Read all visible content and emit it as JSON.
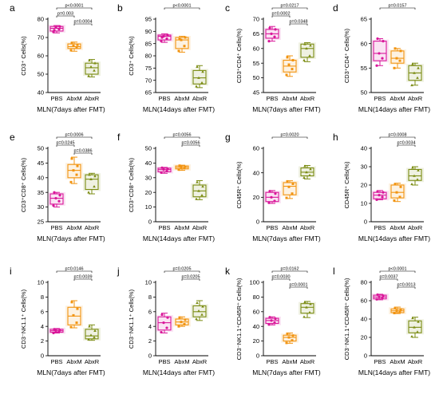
{
  "colors": {
    "PBS": "#d9179a",
    "AbxM": "#f29411",
    "AbxR": "#7b8c13"
  },
  "chart_data": [
    {
      "letter": "a",
      "type": "box",
      "ylabel": "CD3⁺ Cells(%)",
      "xlabel": "MLN(7days after FMT)",
      "categories": [
        "PBS",
        "AbxM",
        "AbxR"
      ],
      "ylim": [
        40,
        80
      ],
      "yticks": [
        40,
        50,
        60,
        70,
        80
      ],
      "series": [
        {
          "group": "PBS",
          "min": 72.5,
          "q1": 73.5,
          "median": 75,
          "q3": 76,
          "max": 76.5,
          "points": [
            73,
            74.5,
            75.5,
            76,
            74
          ]
        },
        {
          "group": "AbxM",
          "min": 62.5,
          "q1": 64,
          "median": 65,
          "q3": 66.5,
          "max": 67.5,
          "points": [
            63,
            64.5,
            65.5,
            66,
            67
          ]
        },
        {
          "group": "AbxR",
          "min": 48.5,
          "q1": 50,
          "median": 53.5,
          "q3": 56,
          "max": 58,
          "points": [
            49,
            52,
            54,
            56,
            57.5
          ]
        }
      ],
      "comparisons": [
        {
          "from": 0,
          "to": 2,
          "text": "p<0.0001"
        },
        {
          "from": 0,
          "to": 1,
          "text": "p=0.003"
        },
        {
          "from": 1,
          "to": 2,
          "text": "p=0.0004"
        }
      ]
    },
    {
      "letter": "b",
      "type": "box",
      "ylabel": "CD3⁺ Cells(%)",
      "xlabel": "MLN(14days after FMT)",
      "categories": [
        "PBS",
        "AbxM",
        "AbxR"
      ],
      "ylim": [
        65,
        95
      ],
      "yticks": [
        65,
        70,
        75,
        80,
        85,
        90,
        95
      ],
      "series": [
        {
          "group": "PBS",
          "min": 85.5,
          "q1": 86.5,
          "median": 88,
          "q3": 88.5,
          "max": 89,
          "points": [
            86,
            87,
            88,
            88.5,
            87.5
          ]
        },
        {
          "group": "AbxM",
          "min": 81.5,
          "q1": 83,
          "median": 86.5,
          "q3": 87.5,
          "max": 88,
          "points": [
            82,
            84,
            86.5,
            87.5,
            87
          ]
        },
        {
          "group": "AbxR",
          "min": 67,
          "q1": 68.5,
          "median": 71,
          "q3": 74,
          "max": 76,
          "points": [
            67.5,
            69,
            71,
            73.5,
            75.5
          ]
        }
      ],
      "comparisons": [
        {
          "from": 0,
          "to": 2,
          "text": "p<0.0001"
        }
      ]
    },
    {
      "letter": "c",
      "type": "box",
      "ylabel": "CD3⁺CD4⁺ Cells(%)",
      "xlabel": "MLN(7days after FMT)",
      "categories": [
        "PBS",
        "AbxM",
        "AbxR"
      ],
      "ylim": [
        45,
        70
      ],
      "yticks": [
        45,
        50,
        55,
        60,
        65,
        70
      ],
      "series": [
        {
          "group": "PBS",
          "min": 62.5,
          "q1": 63.5,
          "median": 65,
          "q3": 66.5,
          "max": 67.5,
          "points": [
            62.5,
            64,
            65,
            66.5,
            67
          ]
        },
        {
          "group": "AbxM",
          "min": 50.5,
          "q1": 52,
          "median": 54,
          "q3": 56,
          "max": 57.5,
          "points": [
            51,
            53,
            54.5,
            56,
            57
          ]
        },
        {
          "group": "AbxR",
          "min": 55.5,
          "q1": 57,
          "median": 60,
          "q3": 61.5,
          "max": 62,
          "points": [
            56,
            57.5,
            60,
            61,
            61.5
          ]
        }
      ],
      "comparisons": [
        {
          "from": 0,
          "to": 1,
          "text": "p=0.0002"
        },
        {
          "from": 0,
          "to": 2,
          "text": "p=0.0217"
        },
        {
          "from": 1,
          "to": 2,
          "text": "p=0.0348"
        }
      ]
    },
    {
      "letter": "d",
      "type": "box",
      "ylabel": "CD3⁺CD4⁺ Cells(%)",
      "xlabel": "MLN(14days after FMT)",
      "categories": [
        "PBS",
        "AbxM",
        "AbxR"
      ],
      "ylim": [
        50,
        65
      ],
      "yticks": [
        50,
        55,
        60,
        65
      ],
      "series": [
        {
          "group": "PBS",
          "min": 55.5,
          "q1": 56.5,
          "median": 58,
          "q3": 60.5,
          "max": 61,
          "points": [
            55.5,
            57,
            58,
            60.5,
            61
          ]
        },
        {
          "group": "AbxM",
          "min": 55,
          "q1": 56,
          "median": 57,
          "q3": 58.5,
          "max": 59,
          "points": [
            55,
            56.5,
            57,
            58.5,
            59
          ]
        },
        {
          "group": "AbxR",
          "min": 51.5,
          "q1": 52.5,
          "median": 54,
          "q3": 55.5,
          "max": 56,
          "points": [
            51.5,
            53,
            54,
            55,
            55.8
          ]
        }
      ],
      "comparisons": [
        {
          "from": 0,
          "to": 2,
          "text": "p=0.0157"
        }
      ]
    },
    {
      "letter": "e",
      "type": "box",
      "ylabel": "CD3⁺CD8⁺ Cells(%)",
      "xlabel": "MLN(7days after FMT)",
      "categories": [
        "PBS",
        "AbxM",
        "AbxR"
      ],
      "ylim": [
        25,
        50
      ],
      "yticks": [
        25,
        30,
        35,
        40,
        45,
        50
      ],
      "series": [
        {
          "group": "PBS",
          "min": 30,
          "q1": 31,
          "median": 33,
          "q3": 34.5,
          "max": 35,
          "points": [
            30.5,
            32,
            33,
            34,
            35
          ]
        },
        {
          "group": "AbxM",
          "min": 38,
          "q1": 40,
          "median": 42.5,
          "q3": 44.5,
          "max": 47,
          "points": [
            38.5,
            41,
            42.5,
            44,
            46.5
          ]
        },
        {
          "group": "AbxR",
          "min": 34.5,
          "q1": 36,
          "median": 39.5,
          "q3": 41,
          "max": 41.5,
          "points": [
            35,
            37,
            39.5,
            40.5,
            41
          ]
        }
      ],
      "comparisons": [
        {
          "from": 0,
          "to": 2,
          "text": "p=0.0006"
        },
        {
          "from": 0,
          "to": 1,
          "text": "p=0.0245"
        },
        {
          "from": 1,
          "to": 2,
          "text": "p=0.0386"
        }
      ]
    },
    {
      "letter": "f",
      "type": "box",
      "ylabel": "CD3⁺CD8⁺ Cells(%)",
      "xlabel": "MLN(14days after FMT)",
      "categories": [
        "PBS",
        "AbxM",
        "AbxR"
      ],
      "ylim": [
        0,
        50
      ],
      "yticks": [
        0,
        10,
        20,
        30,
        40,
        50
      ],
      "series": [
        {
          "group": "PBS",
          "min": 33,
          "q1": 34,
          "median": 35.5,
          "q3": 36.5,
          "max": 37,
          "points": [
            33.5,
            34.5,
            35.5,
            36,
            36.8
          ]
        },
        {
          "group": "AbxM",
          "min": 35,
          "q1": 36,
          "median": 37,
          "q3": 38,
          "max": 38.5,
          "points": [
            35.5,
            36.5,
            37,
            37.5,
            38.2
          ]
        },
        {
          "group": "AbxR",
          "min": 15,
          "q1": 17,
          "median": 21,
          "q3": 25,
          "max": 28,
          "points": [
            15.5,
            18,
            21,
            24,
            27
          ]
        }
      ],
      "comparisons": [
        {
          "from": 0,
          "to": 2,
          "text": "p=0.0056"
        },
        {
          "from": 1,
          "to": 2,
          "text": "p=0.0056"
        }
      ]
    },
    {
      "letter": "g",
      "type": "box",
      "ylabel": "CD45R⁺ Cells(%)",
      "xlabel": "MLN(7days after FMT)",
      "categories": [
        "PBS",
        "AbxM",
        "AbxR"
      ],
      "ylim": [
        0,
        60
      ],
      "yticks": [
        0,
        20,
        40,
        60
      ],
      "series": [
        {
          "group": "PBS",
          "min": 15,
          "q1": 16.5,
          "median": 20,
          "q3": 24,
          "max": 25.5,
          "points": [
            15.5,
            17,
            20,
            23,
            25
          ]
        },
        {
          "group": "AbxM",
          "min": 19,
          "q1": 22,
          "median": 29,
          "q3": 32,
          "max": 33.5,
          "points": [
            19.5,
            23,
            28.5,
            31,
            33
          ]
        },
        {
          "group": "AbxR",
          "min": 35,
          "q1": 37.5,
          "median": 40.5,
          "q3": 44,
          "max": 46,
          "points": [
            36,
            38,
            40.5,
            43,
            45.5
          ]
        }
      ],
      "comparisons": [
        {
          "from": 0,
          "to": 2,
          "text": "p=0.0020"
        }
      ]
    },
    {
      "letter": "h",
      "type": "box",
      "ylabel": "CD45R⁺ Cells(%)",
      "xlabel": "MLN(14days after FMT)",
      "categories": [
        "PBS",
        "AbxM",
        "AbxR"
      ],
      "ylim": [
        0,
        40
      ],
      "yticks": [
        0,
        10,
        20,
        30,
        40
      ],
      "series": [
        {
          "group": "PBS",
          "min": 12,
          "q1": 12.5,
          "median": 14.5,
          "q3": 16,
          "max": 17,
          "points": [
            12,
            13.5,
            14.5,
            16,
            16.5
          ]
        },
        {
          "group": "AbxM",
          "min": 11,
          "q1": 13,
          "median": 16,
          "q3": 20,
          "max": 21,
          "points": [
            11.5,
            13.5,
            16,
            19,
            20.5
          ]
        },
        {
          "group": "AbxR",
          "min": 20,
          "q1": 22.5,
          "median": 25,
          "q3": 28.5,
          "max": 30,
          "points": [
            20.5,
            23,
            25,
            28,
            29.5
          ]
        }
      ],
      "comparisons": [
        {
          "from": 0,
          "to": 2,
          "text": "p=0.0008"
        },
        {
          "from": 1,
          "to": 2,
          "text": "p=0.0034"
        }
      ]
    },
    {
      "letter": "i",
      "type": "box",
      "ylabel": "CD3⁻NK1.1⁺ Cells(%)",
      "xlabel": "MLN(7days after FMT)",
      "categories": [
        "PBS",
        "AbxM",
        "AbxR"
      ],
      "ylim": [
        0,
        10
      ],
      "yticks": [
        0,
        2,
        4,
        6,
        8,
        10
      ],
      "series": [
        {
          "group": "PBS",
          "min": 3.1,
          "q1": 3.2,
          "median": 3.4,
          "q3": 3.6,
          "max": 3.7,
          "points": [
            3.1,
            3.3,
            3.4,
            3.5,
            3.6
          ]
        },
        {
          "group": "AbxM",
          "min": 3.8,
          "q1": 4.2,
          "median": 5.4,
          "q3": 6.6,
          "max": 7.5,
          "points": [
            3.9,
            4.5,
            5.5,
            6.4,
            7.3
          ]
        },
        {
          "group": "AbxR",
          "min": 2.1,
          "q1": 2.3,
          "median": 2.7,
          "q3": 3.6,
          "max": 4.2,
          "points": [
            2.2,
            2.5,
            2.8,
            3.4,
            4.0
          ]
        }
      ],
      "comparisons": [
        {
          "from": 0,
          "to": 2,
          "text": "p=0.0146"
        },
        {
          "from": 1,
          "to": 2,
          "text": "p=0.0039"
        }
      ]
    },
    {
      "letter": "j",
      "type": "box",
      "ylabel": "CD3⁻NK1.1⁺ Cells(%)",
      "xlabel": "MLN(14days after FMT)",
      "categories": [
        "PBS",
        "AbxM",
        "AbxR"
      ],
      "ylim": [
        0,
        10
      ],
      "yticks": [
        0,
        2,
        4,
        6,
        8,
        10
      ],
      "series": [
        {
          "group": "PBS",
          "min": 3.1,
          "q1": 3.5,
          "median": 4.5,
          "q3": 5.3,
          "max": 5.8,
          "points": [
            3.2,
            3.8,
            4.5,
            5.2,
            5.6
          ]
        },
        {
          "group": "AbxM",
          "min": 4.0,
          "q1": 4.2,
          "median": 4.6,
          "q3": 5.0,
          "max": 5.3,
          "points": [
            4.0,
            4.3,
            4.6,
            4.9,
            5.2
          ]
        },
        {
          "group": "AbxR",
          "min": 4.8,
          "q1": 5.3,
          "median": 6.0,
          "q3": 6.8,
          "max": 7.5,
          "points": [
            5.0,
            5.6,
            6.1,
            6.7,
            7.2
          ]
        }
      ],
      "comparisons": [
        {
          "from": 0,
          "to": 2,
          "text": "p=0.0205"
        },
        {
          "from": 1,
          "to": 2,
          "text": "p=0.0205"
        }
      ]
    },
    {
      "letter": "k",
      "type": "box",
      "ylabel": "CD3⁻NK1.1⁺CD45R⁺ Cells(%)",
      "xlabel": "MLN(7days after FMT)",
      "categories": [
        "PBS",
        "AbxM",
        "AbxR"
      ],
      "ylim": [
        0,
        100
      ],
      "yticks": [
        0,
        20,
        40,
        60,
        80,
        100
      ],
      "series": [
        {
          "group": "PBS",
          "min": 42,
          "q1": 44,
          "median": 48,
          "q3": 51,
          "max": 53,
          "points": [
            42.5,
            45,
            48,
            50.5,
            52.5
          ]
        },
        {
          "group": "AbxM",
          "min": 17,
          "q1": 20,
          "median": 25,
          "q3": 28,
          "max": 31,
          "points": [
            17.5,
            21,
            25,
            27.5,
            30
          ]
        },
        {
          "group": "AbxR",
          "min": 52,
          "q1": 58,
          "median": 66,
          "q3": 71,
          "max": 74,
          "points": [
            53,
            59,
            66,
            70.5,
            73
          ]
        }
      ],
      "comparisons": [
        {
          "from": 0,
          "to": 2,
          "text": "p=0.0162"
        },
        {
          "from": 0,
          "to": 1,
          "text": "p=0.0030"
        },
        {
          "from": 1,
          "to": 2,
          "text": "p=0.0001"
        }
      ]
    },
    {
      "letter": "l",
      "type": "box",
      "ylabel": "CD3⁻NK1.1⁺CD45R⁺ Cells(%)",
      "xlabel": "MLN(14days after FMT)",
      "categories": [
        "PBS",
        "AbxM",
        "AbxR"
      ],
      "ylim": [
        0,
        80
      ],
      "yticks": [
        0,
        20,
        40,
        60,
        80
      ],
      "series": [
        {
          "group": "PBS",
          "min": 61,
          "q1": 62,
          "median": 64,
          "q3": 66,
          "max": 67,
          "points": [
            61.5,
            63,
            64,
            65.5,
            66.5
          ]
        },
        {
          "group": "AbxM",
          "min": 46,
          "q1": 47,
          "median": 49,
          "q3": 51,
          "max": 53,
          "points": [
            46.5,
            48,
            49,
            50.5,
            52
          ]
        },
        {
          "group": "AbxR",
          "min": 20,
          "q1": 25,
          "median": 31,
          "q3": 38,
          "max": 42,
          "points": [
            21,
            26,
            31,
            37,
            41
          ]
        }
      ],
      "comparisons": [
        {
          "from": 0,
          "to": 2,
          "text": "p<0.0001"
        },
        {
          "from": 0,
          "to": 1,
          "text": "p=0.0037"
        },
        {
          "from": 1,
          "to": 2,
          "text": "p=0.0013"
        }
      ]
    }
  ]
}
